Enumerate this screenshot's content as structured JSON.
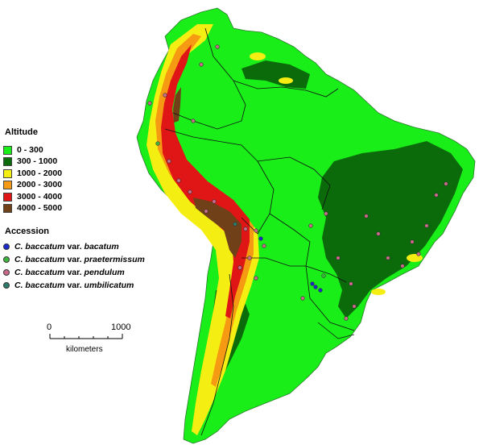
{
  "legend": {
    "altitude_title": "Altitude",
    "altitude": [
      {
        "label": "0 - 300",
        "color": "#19ee19"
      },
      {
        "label": "300 - 1000",
        "color": "#0b6b0b"
      },
      {
        "label": "1000 - 2000",
        "color": "#f5ee12"
      },
      {
        "label": "2000 - 3000",
        "color": "#f59a12"
      },
      {
        "label": "3000 - 4000",
        "color": "#e01515"
      },
      {
        "label": "4000 - 5000",
        "color": "#704018"
      }
    ],
    "accession_title": "Accession",
    "accession": [
      {
        "species": "C. baccatum",
        "var_word": "var.",
        "variety": "bacatum",
        "color": "#1a2ad0"
      },
      {
        "species": "C. baccatum",
        "var_word": "var.",
        "variety": "praetermissum",
        "color": "#3fb63f"
      },
      {
        "species": "C. baccatum",
        "var_word": "var.",
        "variety": "pendulum",
        "color": "#c86a8a"
      },
      {
        "species": "C. baccatum",
        "var_word": "var.",
        "variety": "umbilicatum",
        "color": "#2c7a6b"
      }
    ]
  },
  "scale_bar": {
    "start_label": "0",
    "end_label": "1000",
    "unit_label": "kilometers"
  }
}
